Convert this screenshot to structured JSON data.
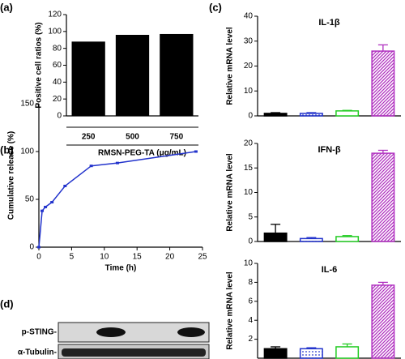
{
  "chart_data": [
    {
      "type": "bar",
      "panel": "(a)",
      "y_label": "Positive cell ratios (%)",
      "x_label": "RMSN-PEG-TA (μg/mL)",
      "categories": [
        "250",
        "500",
        "750"
      ],
      "values": [
        88,
        96,
        97
      ],
      "color": "#000000",
      "ylim": [
        0,
        120
      ],
      "yticks": [
        0,
        20,
        40,
        60,
        80,
        100,
        120
      ]
    },
    {
      "type": "line",
      "panel": "(b)",
      "y_label": "Cumulative release (%)",
      "x_label": "Time (h)",
      "x": [
        0,
        0.5,
        1,
        2,
        4,
        8,
        12,
        24
      ],
      "values": [
        0,
        38,
        42,
        47,
        64,
        85,
        88,
        100
      ],
      "color": "#2233cc",
      "xlim": [
        0,
        25
      ],
      "xticks": [
        0,
        5,
        10,
        15,
        20,
        25
      ],
      "ylim": [
        0,
        150
      ],
      "yticks": [
        0,
        50,
        100,
        150
      ]
    },
    {
      "type": "errbar",
      "panel": "(c)",
      "title": "IL-1β",
      "y_label": "Relative mRNA level",
      "values": [
        1,
        1,
        2,
        26
      ],
      "errors": [
        0.3,
        0.3,
        0.2,
        2.5
      ],
      "colors": [
        "#000000",
        "#2233cc",
        "#22cc22",
        "#b030c0"
      ],
      "patterns": [
        "solid",
        "dotted",
        "outline",
        "hatched"
      ],
      "ylim": [
        0,
        40
      ],
      "yticks": [
        0,
        10,
        20,
        30,
        40
      ]
    },
    {
      "type": "errbar",
      "title": "IFN-β",
      "y_label": "Relative mRNA level",
      "values": [
        1.7,
        0.6,
        1.0,
        18
      ],
      "errors": [
        1.8,
        0.2,
        0.2,
        0.6
      ],
      "colors": [
        "#000000",
        "#2233cc",
        "#22cc22",
        "#b030c0"
      ],
      "patterns": [
        "solid",
        "dotted",
        "outline",
        "hatched"
      ],
      "ylim": [
        0,
        20
      ],
      "yticks": [
        0,
        5,
        10,
        15,
        20
      ]
    },
    {
      "type": "errbar",
      "title": "IL-6",
      "y_label": "Relative mRNA level",
      "values": [
        1.0,
        1.0,
        1.2,
        7.7
      ],
      "errors": [
        0.2,
        0.1,
        0.3,
        0.3
      ],
      "colors": [
        "#000000",
        "#2233cc",
        "#22cc22",
        "#b030c0"
      ],
      "patterns": [
        "solid",
        "dotted",
        "outline",
        "hatched"
      ],
      "ylim": [
        0,
        10
      ],
      "yticks": [
        2,
        4,
        6,
        8,
        10
      ]
    }
  ],
  "blot": {
    "panel": "(d)",
    "rows": [
      "p-STING-",
      "α-Tubulin-"
    ]
  }
}
